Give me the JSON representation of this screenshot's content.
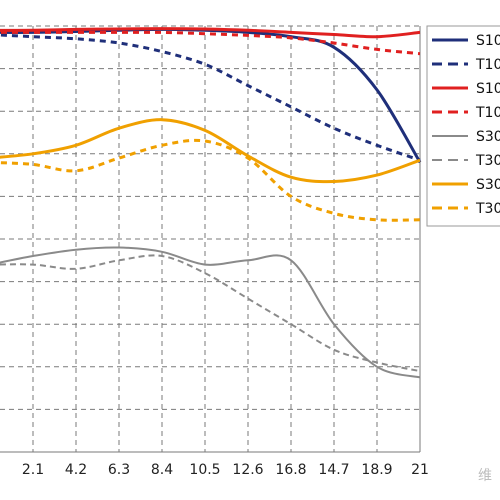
{
  "chart_data": {
    "type": "line",
    "x_ticks": [
      "2.1",
      "4.2",
      "6.3",
      "8.4",
      "10.5",
      "12.6",
      "16.8",
      "14.7",
      "18.9",
      "21"
    ],
    "x_domain": [
      0,
      21
    ],
    "y_domain": [
      0,
      1
    ],
    "grid": true,
    "legend_placement": "right",
    "series": [
      {
        "name": "S10",
        "color": "#1f2f7a",
        "style": "solid",
        "x": [
          0,
          2.1,
          4.2,
          6.3,
          8.4,
          10.5,
          12.6,
          14.7,
          16.8,
          18.9,
          21
        ],
        "y": [
          0.985,
          0.985,
          0.987,
          0.99,
          0.992,
          0.99,
          0.985,
          0.975,
          0.95,
          0.85,
          0.68
        ]
      },
      {
        "name": "T10",
        "color": "#1f2f7a",
        "style": "dash",
        "x": [
          0,
          2.1,
          4.2,
          6.3,
          8.4,
          10.5,
          12.6,
          14.7,
          16.8,
          18.9,
          21
        ],
        "y": [
          0.98,
          0.975,
          0.97,
          0.96,
          0.94,
          0.91,
          0.86,
          0.81,
          0.76,
          0.72,
          0.685
        ]
      },
      {
        "name": "S10",
        "color": "#e02020",
        "style": "solid",
        "x": [
          0,
          2.1,
          4.2,
          6.3,
          8.4,
          10.5,
          12.6,
          14.7,
          16.8,
          18.9,
          21
        ],
        "y": [
          0.99,
          0.99,
          0.992,
          0.993,
          0.994,
          0.993,
          0.99,
          0.985,
          0.98,
          0.975,
          0.985
        ]
      },
      {
        "name": "T10",
        "color": "#e02020",
        "style": "dash",
        "x": [
          0,
          2.1,
          4.2,
          6.3,
          8.4,
          10.5,
          12.6,
          14.7,
          16.8,
          18.9,
          21
        ],
        "y": [
          0.985,
          0.985,
          0.985,
          0.985,
          0.985,
          0.982,
          0.978,
          0.972,
          0.96,
          0.945,
          0.935
        ]
      },
      {
        "name": "S30",
        "color": "#8a8a8a",
        "style": "solid",
        "x": [
          0,
          2.1,
          4.2,
          6.3,
          8.4,
          10.5,
          12.6,
          14.7,
          16.8,
          18.9,
          21
        ],
        "y": [
          0.44,
          0.46,
          0.475,
          0.48,
          0.47,
          0.44,
          0.45,
          0.45,
          0.3,
          0.2,
          0.175
        ]
      },
      {
        "name": "T30",
        "color": "#8a8a8a",
        "style": "dash",
        "x": [
          0,
          2.1,
          4.2,
          6.3,
          8.4,
          10.5,
          12.6,
          14.7,
          16.8,
          18.9,
          21
        ],
        "y": [
          0.44,
          0.44,
          0.43,
          0.45,
          0.46,
          0.42,
          0.36,
          0.3,
          0.24,
          0.21,
          0.19
        ]
      },
      {
        "name": "S30",
        "color": "#f0a000",
        "style": "solid",
        "x": [
          0,
          2.1,
          4.2,
          6.3,
          8.4,
          10.5,
          12.6,
          14.7,
          16.8,
          18.9,
          21
        ],
        "y": [
          0.69,
          0.7,
          0.72,
          0.76,
          0.78,
          0.755,
          0.695,
          0.645,
          0.635,
          0.65,
          0.685
        ]
      },
      {
        "name": "T30",
        "color": "#f0a000",
        "style": "dash",
        "x": [
          0,
          2.1,
          4.2,
          6.3,
          8.4,
          10.5,
          12.6,
          14.7,
          16.8,
          18.9,
          21
        ],
        "y": [
          0.68,
          0.675,
          0.66,
          0.69,
          0.72,
          0.73,
          0.69,
          0.6,
          0.56,
          0.545,
          0.545
        ]
      }
    ]
  },
  "watermark": "维"
}
